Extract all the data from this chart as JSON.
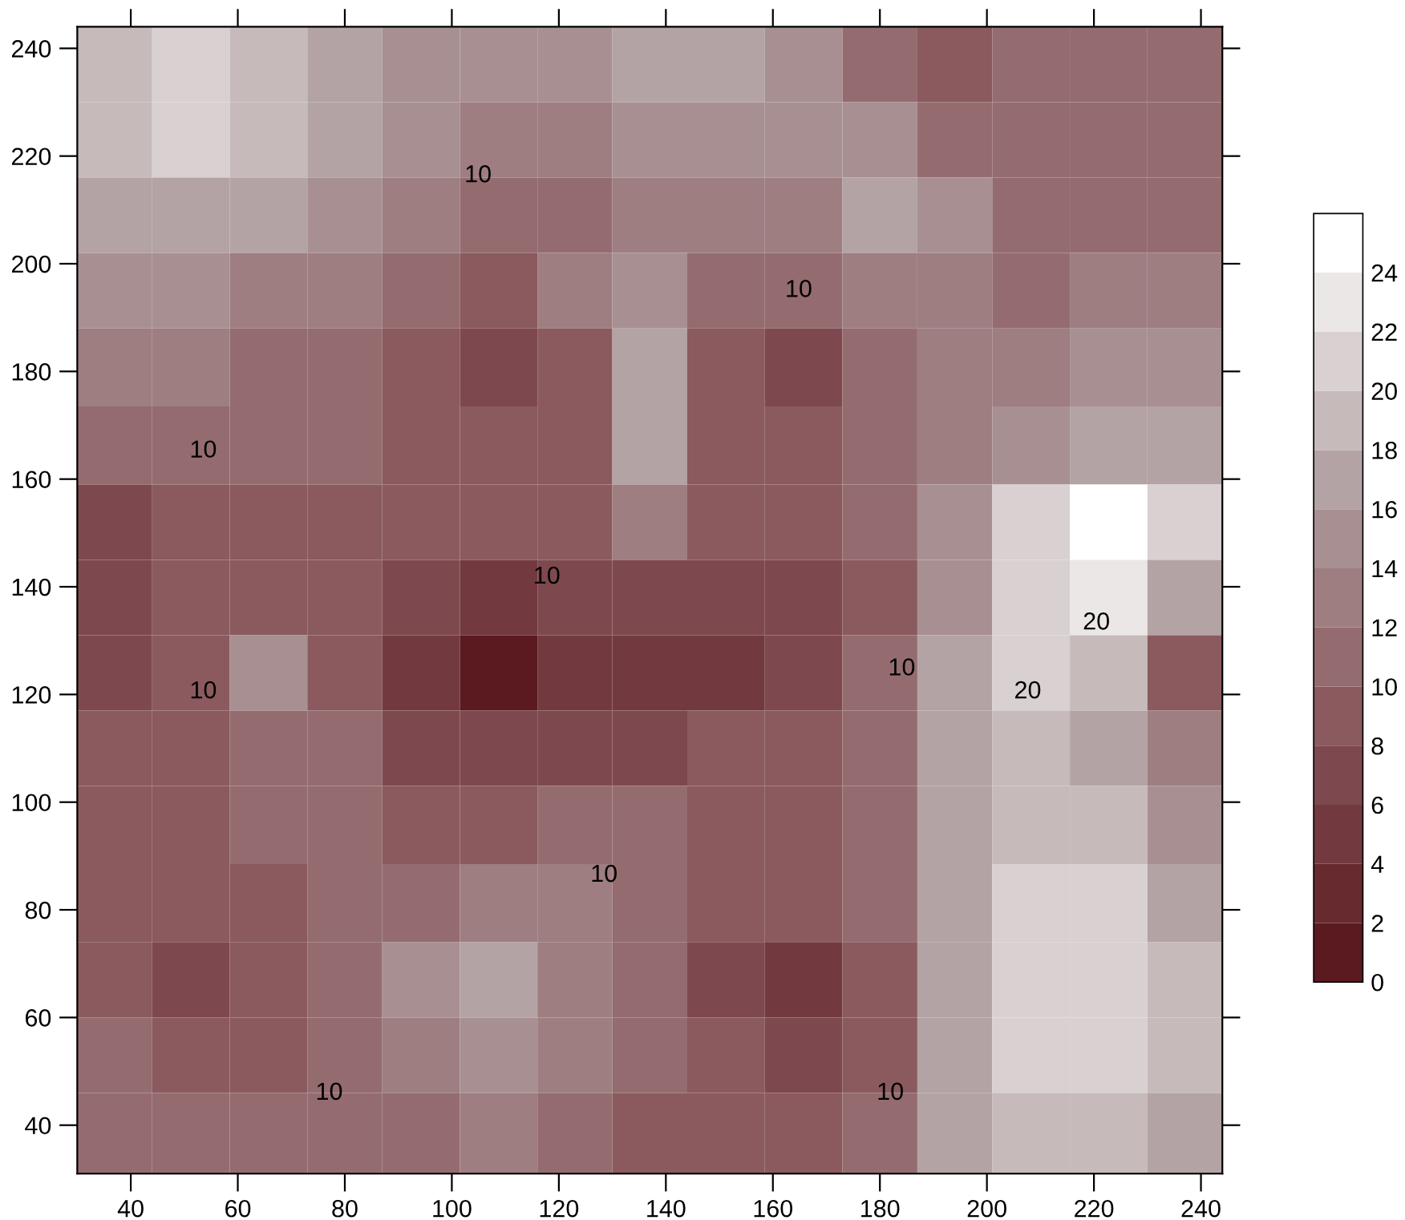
{
  "chart_data": {
    "type": "heatmap",
    "x": [
      37,
      51,
      66,
      80,
      94,
      109,
      123,
      137,
      151,
      166,
      180,
      194,
      208,
      223,
      237
    ],
    "y": [
      237,
      223,
      209,
      195,
      181,
      166,
      152,
      138,
      124,
      110,
      96,
      81,
      67,
      53,
      39
    ],
    "xlim": [
      30,
      244
    ],
    "ylim": [
      31,
      244
    ],
    "xticks": [
      40,
      60,
      80,
      100,
      120,
      140,
      160,
      180,
      200,
      220,
      240
    ],
    "yticks": [
      40,
      60,
      80,
      100,
      120,
      140,
      160,
      180,
      200,
      220,
      240
    ],
    "clim": [
      0,
      26
    ],
    "cticks": [
      0,
      2,
      4,
      6,
      8,
      10,
      12,
      14,
      16,
      18,
      20,
      22,
      24
    ],
    "cells": [
      [
        19,
        20,
        19,
        16,
        15,
        14,
        15,
        16,
        17,
        15,
        11,
        9,
        10,
        10,
        11
      ],
      [
        19,
        20,
        19,
        16,
        14,
        13,
        13,
        14,
        14,
        14,
        15,
        11,
        10,
        10,
        11
      ],
      [
        17,
        17,
        16,
        14,
        12,
        10,
        11,
        12,
        12,
        12,
        17,
        14,
        11,
        11,
        11
      ],
      [
        15,
        14,
        13,
        12,
        10,
        9,
        12,
        14,
        10,
        10,
        13,
        13,
        11,
        12,
        13
      ],
      [
        13,
        12,
        11,
        10,
        8,
        6,
        9,
        17,
        9,
        6,
        10,
        12,
        12,
        14,
        14
      ],
      [
        10,
        10,
        10,
        10,
        8,
        8,
        9,
        16,
        9,
        8,
        10,
        13,
        15,
        17,
        16
      ],
      [
        7,
        9,
        9,
        9,
        8,
        8,
        9,
        12,
        8,
        8,
        10,
        15,
        20,
        24,
        20
      ],
      [
        6,
        8,
        9,
        8,
        6,
        5,
        6,
        7,
        6,
        6,
        9,
        15,
        21,
        22,
        16
      ],
      [
        7,
        9,
        14,
        9,
        4,
        1,
        4,
        5,
        5,
        6,
        10,
        16,
        20,
        19,
        9
      ],
      [
        8,
        9,
        11,
        10,
        6,
        6,
        6,
        7,
        8,
        8,
        10,
        16,
        19,
        17,
        12
      ],
      [
        8,
        8,
        10,
        10,
        9,
        9,
        10,
        10,
        9,
        9,
        11,
        16,
        19,
        18,
        14
      ],
      [
        8,
        8,
        9,
        10,
        11,
        12,
        12,
        11,
        9,
        8,
        11,
        17,
        20,
        20,
        17
      ],
      [
        8,
        7,
        8,
        10,
        14,
        16,
        13,
        10,
        7,
        5,
        8,
        16,
        20,
        21,
        18
      ],
      [
        10,
        8,
        8,
        10,
        13,
        14,
        12,
        10,
        8,
        6,
        9,
        16,
        20,
        20,
        18
      ],
      [
        10,
        10,
        10,
        10,
        11,
        12,
        11,
        9,
        9,
        9,
        11,
        16,
        18,
        19,
        17
      ]
    ],
    "annotations": [
      "10",
      "10",
      "10",
      "10",
      "10",
      "10",
      "10",
      "10",
      "20",
      "20",
      "10"
    ]
  }
}
